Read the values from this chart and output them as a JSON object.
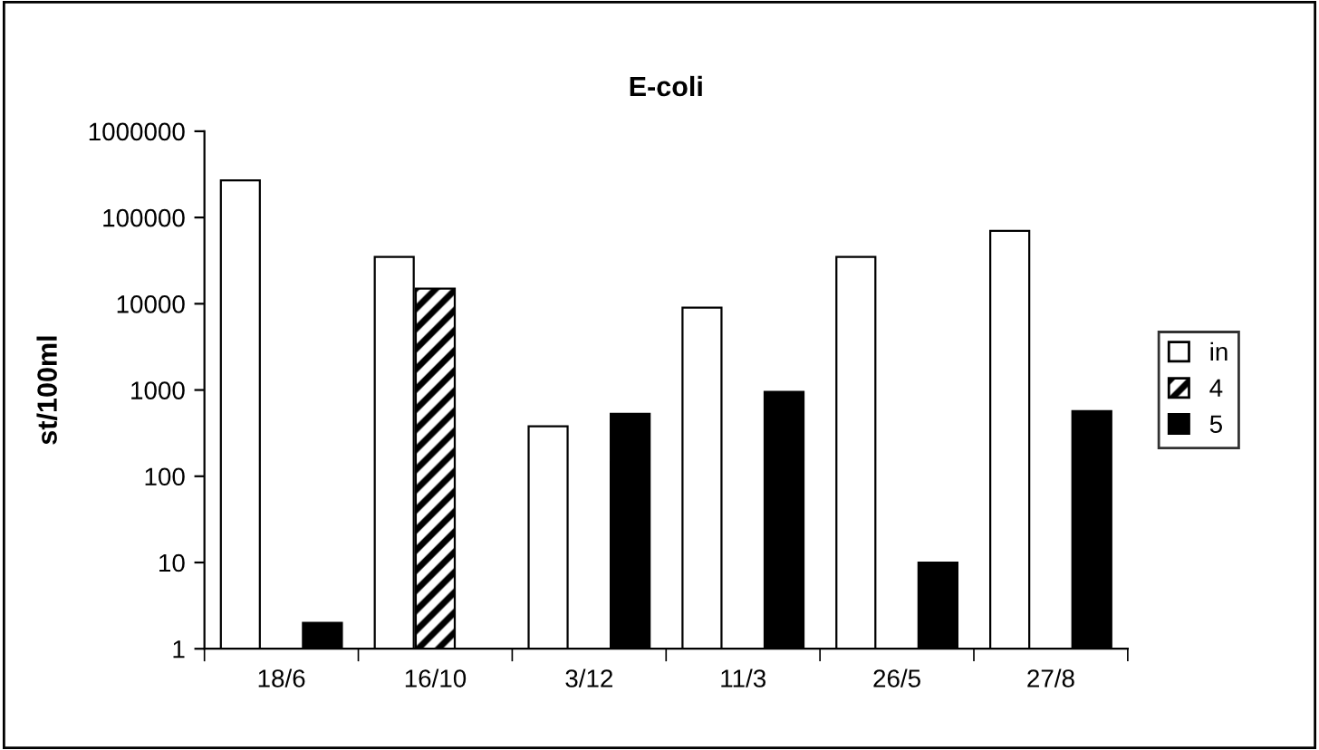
{
  "chart_data": {
    "type": "bar",
    "title": "E-coli",
    "ylabel": "st/100ml",
    "categories": [
      "18/6",
      "16/10",
      "3/12",
      "11/3",
      "26/5",
      "27/8"
    ],
    "series": [
      {
        "name": "in",
        "color": "#ffffff",
        "values": [
          270000,
          35000,
          380,
          9000,
          35000,
          70000
        ]
      },
      {
        "name": "4",
        "color": "#000000",
        "values": [
          null,
          15000,
          null,
          null,
          null,
          null
        ]
      },
      {
        "name": "5",
        "color": "#000000",
        "values": [
          2,
          null,
          530,
          950,
          10,
          570
        ]
      }
    ],
    "log": true,
    "ylim": [
      1,
      1000000
    ],
    "yticks": [
      1,
      10,
      100,
      1000,
      10000,
      100000,
      1000000
    ],
    "grid": false,
    "legend": "right"
  }
}
